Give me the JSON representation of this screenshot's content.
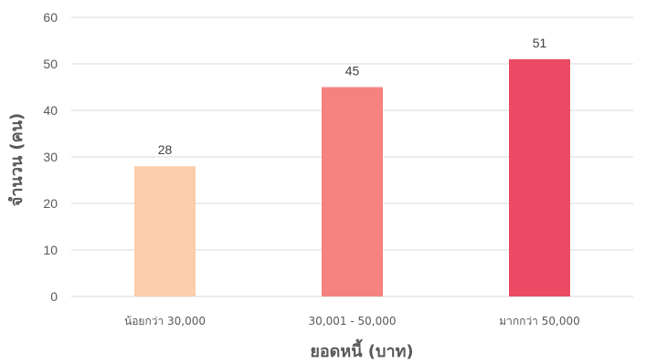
{
  "chart_data": {
    "type": "bar",
    "categories": [
      "น้อยกว่า 30,000",
      "30,001  - 50,000",
      "มากกว่า 50,000"
    ],
    "values": [
      28,
      45,
      51
    ],
    "data_labels": [
      "28",
      "45",
      "51"
    ],
    "colors": [
      "#FBCDAB",
      "#F6827F",
      "#EA4A63"
    ],
    "gridline_color": "#D9D9D9",
    "xlabel": "ยอดหนี้ (บาท)",
    "ylabel": "จำนวน (คน)",
    "ylim": [
      0,
      60
    ],
    "yticks": [
      "0",
      "10",
      "20",
      "30",
      "40",
      "50",
      "60"
    ],
    "grid": true,
    "legend": "none"
  }
}
